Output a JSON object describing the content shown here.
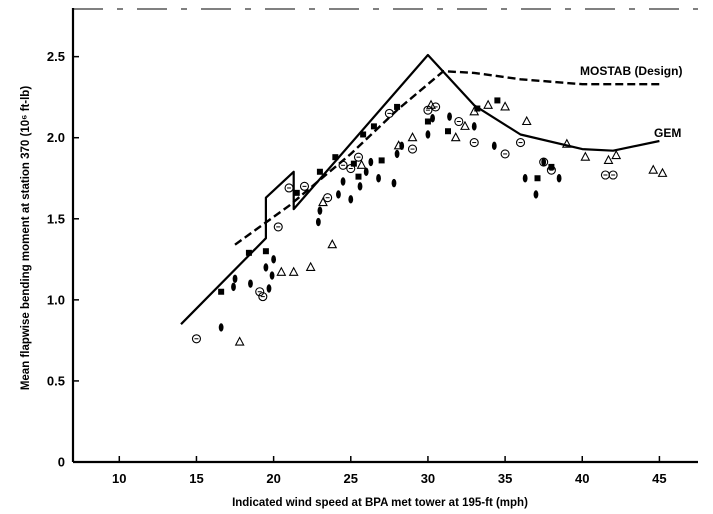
{
  "chart_data": {
    "type": "scatter",
    "title": "",
    "xlabel": "Indicated wind speed at BPA met tower at 195-ft (mph)",
    "ylabel": "Mean flapwise bending moment at station 370 (10⁶ ft-lb)",
    "xlim": [
      7,
      47.5
    ],
    "ylim": [
      0,
      2.8
    ],
    "x_ticks": [
      "10",
      "15",
      "20",
      "25",
      "30",
      "35",
      "40",
      "45"
    ],
    "y_ticks": [
      "0",
      "0.5",
      "1.0",
      "1.5",
      "2.0",
      "2.5"
    ],
    "grid": false,
    "series": [
      {
        "name": "GEM",
        "kind": "line",
        "style": "solid",
        "points": [
          [
            14,
            0.85
          ],
          [
            19.5,
            1.38
          ],
          [
            19.5,
            1.63
          ],
          [
            21.3,
            1.79
          ],
          [
            21.3,
            1.56
          ],
          [
            30,
            2.51
          ],
          [
            33,
            2.2
          ],
          [
            36,
            2.02
          ],
          [
            40,
            1.93
          ],
          [
            42,
            1.92
          ],
          [
            45,
            1.98
          ]
        ]
      },
      {
        "name": "MOSTAB (Design)",
        "kind": "line",
        "style": "dashed",
        "points": [
          [
            17.5,
            1.34
          ],
          [
            21,
            1.58
          ],
          [
            25,
            1.9
          ],
          [
            28,
            2.17
          ],
          [
            30,
            2.33
          ],
          [
            31,
            2.41
          ],
          [
            33,
            2.4
          ],
          [
            36,
            2.36
          ],
          [
            40,
            2.33
          ],
          [
            45,
            2.33
          ]
        ]
      }
    ],
    "scatter": [
      {
        "marker": "square",
        "points": [
          [
            16.6,
            1.05
          ],
          [
            18.4,
            1.29
          ],
          [
            19.5,
            1.3
          ],
          [
            21.5,
            1.66
          ],
          [
            23,
            1.79
          ],
          [
            24,
            1.88
          ],
          [
            25.2,
            1.84
          ],
          [
            25.8,
            2.02
          ],
          [
            25.5,
            1.76
          ],
          [
            26.5,
            2.07
          ],
          [
            27,
            1.86
          ],
          [
            28,
            2.19
          ],
          [
            30,
            2.1
          ],
          [
            31.3,
            2.04
          ],
          [
            33.2,
            2.18
          ],
          [
            34.5,
            2.23
          ],
          [
            37.1,
            1.75
          ],
          [
            38,
            1.82
          ]
        ]
      },
      {
        "marker": "diamond",
        "points": [
          [
            16.6,
            0.83
          ],
          [
            17.4,
            1.08
          ],
          [
            17.5,
            1.13
          ],
          [
            18.5,
            1.1
          ],
          [
            19.5,
            1.2
          ],
          [
            19.7,
            1.07
          ],
          [
            19.9,
            1.15
          ],
          [
            20,
            1.25
          ],
          [
            22.9,
            1.48
          ],
          [
            23,
            1.55
          ],
          [
            24.2,
            1.65
          ],
          [
            24.5,
            1.73
          ],
          [
            25,
            1.62
          ],
          [
            25.6,
            1.7
          ],
          [
            26,
            1.79
          ],
          [
            26.3,
            1.85
          ],
          [
            26.8,
            1.75
          ],
          [
            27.8,
            1.72
          ],
          [
            28,
            1.9
          ],
          [
            28.3,
            1.95
          ],
          [
            30,
            2.02
          ],
          [
            30.3,
            2.12
          ],
          [
            31.4,
            2.13
          ],
          [
            33,
            2.07
          ],
          [
            34.3,
            1.95
          ],
          [
            36.3,
            1.75
          ],
          [
            37,
            1.65
          ],
          [
            37.5,
            1.85
          ],
          [
            38.5,
            1.75
          ]
        ]
      },
      {
        "marker": "circle",
        "points": [
          [
            15,
            0.76
          ],
          [
            19.1,
            1.05
          ],
          [
            19.3,
            1.02
          ],
          [
            20.3,
            1.45
          ],
          [
            21,
            1.69
          ],
          [
            22,
            1.7
          ],
          [
            23.5,
            1.63
          ],
          [
            24.5,
            1.83
          ],
          [
            25,
            1.81
          ],
          [
            25.5,
            1.88
          ],
          [
            27.5,
            2.15
          ],
          [
            29,
            1.93
          ],
          [
            30,
            2.17
          ],
          [
            30.5,
            2.19
          ],
          [
            32,
            2.1
          ],
          [
            33,
            1.97
          ],
          [
            35,
            1.9
          ],
          [
            36,
            1.97
          ],
          [
            37.5,
            1.85
          ],
          [
            38,
            1.8
          ],
          [
            41.5,
            1.77
          ],
          [
            42,
            1.77
          ]
        ]
      },
      {
        "marker": "triangle",
        "points": [
          [
            17.8,
            0.74
          ],
          [
            20.5,
            1.17
          ],
          [
            21.3,
            1.17
          ],
          [
            22.4,
            1.2
          ],
          [
            23.8,
            1.34
          ],
          [
            23.2,
            1.6
          ],
          [
            25.7,
            1.83
          ],
          [
            28.1,
            1.95
          ],
          [
            29,
            2
          ],
          [
            30.2,
            2.2
          ],
          [
            31.8,
            2.0
          ],
          [
            32.4,
            2.07
          ],
          [
            33,
            2.16
          ],
          [
            33.9,
            2.2
          ],
          [
            35,
            2.19
          ],
          [
            36.4,
            2.1
          ],
          [
            39,
            1.96
          ],
          [
            40.2,
            1.88
          ],
          [
            41.7,
            1.86
          ],
          [
            42.2,
            1.89
          ],
          [
            44.6,
            1.8
          ],
          [
            45.2,
            1.78
          ]
        ]
      }
    ]
  }
}
